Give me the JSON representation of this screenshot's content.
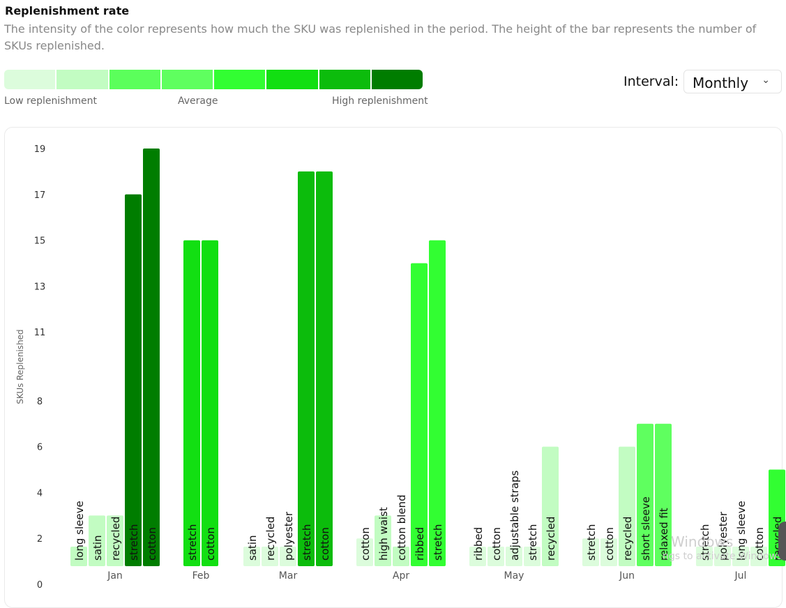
{
  "header": {
    "title": "Replenishment rate",
    "description": "The intensity of the color represents how much the SKU was replenished in the period. The height of the bar represents the number of SKUs replenished."
  },
  "legend": {
    "colors": [
      "#dcfcdc",
      "#c2fcc2",
      "#5bff5b",
      "#5fff5f",
      "#32fe32",
      "#12df12",
      "#0cbc0c",
      "#007d00"
    ],
    "low_label": "Low replenishment",
    "avg_label": "Average",
    "high_label": "High replenishment"
  },
  "interval": {
    "label": "Interval:",
    "value": "Monthly"
  },
  "watermark": {
    "line1": "Windows",
    "line2": "ngs to activate Windows"
  },
  "chart_data": {
    "type": "bar",
    "ylabel": "SKUs Replenished",
    "xlabel": "",
    "yticks": [
      0,
      2,
      4,
      6,
      8,
      11,
      13,
      15,
      17,
      19
    ],
    "ylim": [
      0,
      19
    ],
    "groups": [
      {
        "month": "Jan",
        "bars": [
          {
            "label": "long sleeve",
            "value": 1,
            "intensity": 1
          },
          {
            "label": "satin",
            "value": 3,
            "intensity": 1
          },
          {
            "label": "recycled",
            "value": 3,
            "intensity": 1
          },
          {
            "label": "stretch",
            "value": 17,
            "intensity": 7
          },
          {
            "label": "cotton",
            "value": 19,
            "intensity": 7
          }
        ]
      },
      {
        "month": "Feb",
        "bars": [
          {
            "label": "stretch",
            "value": 15,
            "intensity": 5
          },
          {
            "label": "cotton",
            "value": 15,
            "intensity": 5
          }
        ]
      },
      {
        "month": "Mar",
        "bars": [
          {
            "label": "satin",
            "value": 1,
            "intensity": 0
          },
          {
            "label": "recycled",
            "value": 1,
            "intensity": 0
          },
          {
            "label": "polyester",
            "value": 1,
            "intensity": 0
          },
          {
            "label": "stretch",
            "value": 18,
            "intensity": 6
          },
          {
            "label": "cotton",
            "value": 18,
            "intensity": 6
          }
        ]
      },
      {
        "month": "Apr",
        "bars": [
          {
            "label": "cotton",
            "value": 2,
            "intensity": 0
          },
          {
            "label": "high waist",
            "value": 3,
            "intensity": 1
          },
          {
            "label": "cotton blend",
            "value": 1,
            "intensity": 1
          },
          {
            "label": "ribbed",
            "value": 14,
            "intensity": 4
          },
          {
            "label": "stretch",
            "value": 15,
            "intensity": 4
          }
        ]
      },
      {
        "month": "May",
        "bars": [
          {
            "label": "ribbed",
            "value": 1,
            "intensity": 0
          },
          {
            "label": "cotton",
            "value": 1,
            "intensity": 0
          },
          {
            "label": "adjustable straps",
            "value": 1,
            "intensity": 0
          },
          {
            "label": "stretch",
            "value": 1,
            "intensity": 0
          },
          {
            "label": "recycled",
            "value": 6,
            "intensity": 1
          }
        ]
      },
      {
        "month": "Jun",
        "bars": [
          {
            "label": "stretch",
            "value": 2,
            "intensity": 0
          },
          {
            "label": "cotton",
            "value": 2,
            "intensity": 0
          },
          {
            "label": "recycled",
            "value": 6,
            "intensity": 1
          },
          {
            "label": "short sleeve",
            "value": 7,
            "intensity": 3
          },
          {
            "label": "relaxed fit",
            "value": 7,
            "intensity": 3
          }
        ]
      },
      {
        "month": "Jul",
        "bars": [
          {
            "label": "stretch",
            "value": 1,
            "intensity": 0
          },
          {
            "label": "polyester",
            "value": 1,
            "intensity": 0
          },
          {
            "label": "long sleeve",
            "value": 1,
            "intensity": 0
          },
          {
            "label": "cotton",
            "value": 1,
            "intensity": 0
          },
          {
            "label": "recycled",
            "value": 5,
            "intensity": 4
          }
        ]
      }
    ]
  }
}
